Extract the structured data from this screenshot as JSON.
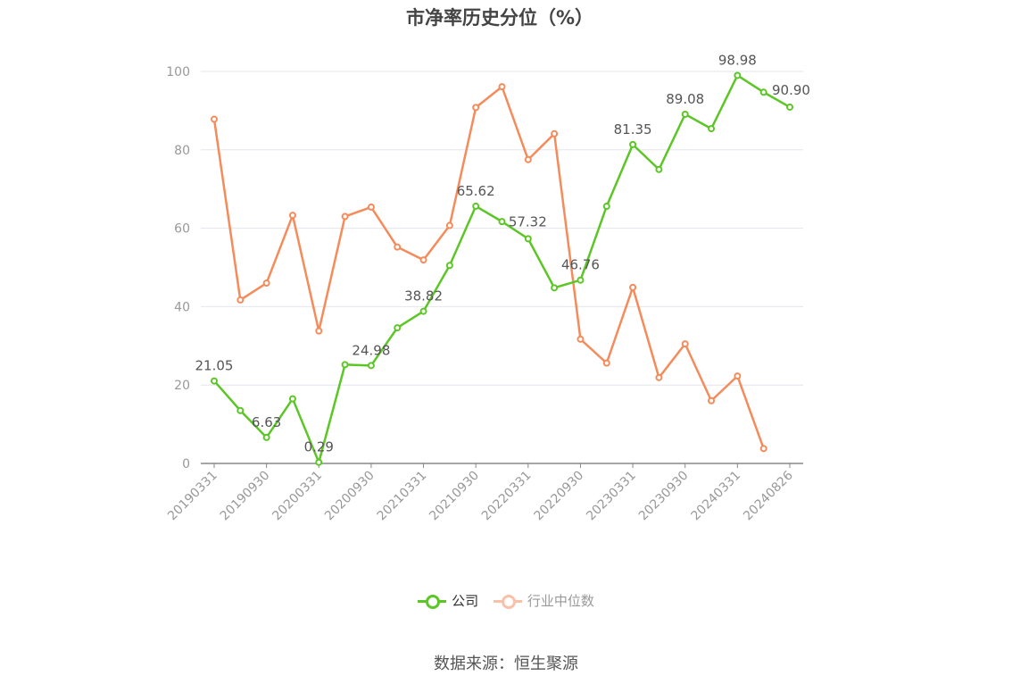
{
  "chart_data": {
    "type": "line",
    "title": "市净率历史分位（%）",
    "ylim": [
      0,
      100
    ],
    "yticks": [
      0,
      20,
      40,
      60,
      80,
      100
    ],
    "x": [
      "20190331",
      "20190630",
      "20190930",
      "20191231",
      "20200331",
      "20200630",
      "20200930",
      "20201231",
      "20210331",
      "20210630",
      "20210930",
      "20211231",
      "20220331",
      "20220630",
      "20220930",
      "20221231",
      "20230331",
      "20230630",
      "20230930",
      "20231231",
      "20240331",
      "20240630",
      "20240826"
    ],
    "x_tick_labels": [
      "20190331",
      "20190930",
      "20200331",
      "20200930",
      "20210331",
      "20210930",
      "20220331",
      "20220930",
      "20230331",
      "20230930",
      "20240331",
      "20240826"
    ],
    "x_tick_indices": [
      0,
      2,
      4,
      6,
      8,
      10,
      12,
      14,
      16,
      18,
      20,
      22
    ],
    "series": [
      {
        "name": "公司",
        "color": "#5cc626",
        "values": [
          21.05,
          13.5,
          6.63,
          16.5,
          0.29,
          25.2,
          24.98,
          34.6,
          38.82,
          50.5,
          65.62,
          61.7,
          57.32,
          44.8,
          46.76,
          65.6,
          81.35,
          75.0,
          89.08,
          85.4,
          98.98,
          94.7,
          90.9
        ],
        "labels": {
          "0": "21.05",
          "2": "6.63",
          "4": "0.29",
          "6": "24.98",
          "8": "38.82",
          "10": "65.62",
          "12": "57.32",
          "14": "46.76",
          "16": "81.35",
          "18": "89.08",
          "20": "98.98",
          "22": "90.90"
        }
      },
      {
        "name": "行业中位数",
        "color": "#f58b5a",
        "values": [
          87.8,
          41.7,
          46.0,
          63.3,
          33.8,
          63.0,
          65.4,
          55.2,
          51.9,
          60.7,
          90.8,
          96.1,
          77.5,
          84.1,
          31.7,
          25.6,
          44.9,
          21.9,
          30.5,
          16.0,
          22.3,
          3.8,
          null
        ]
      }
    ],
    "legend_position": "bottom",
    "grid": true
  },
  "source": "数据来源：恒生聚源"
}
